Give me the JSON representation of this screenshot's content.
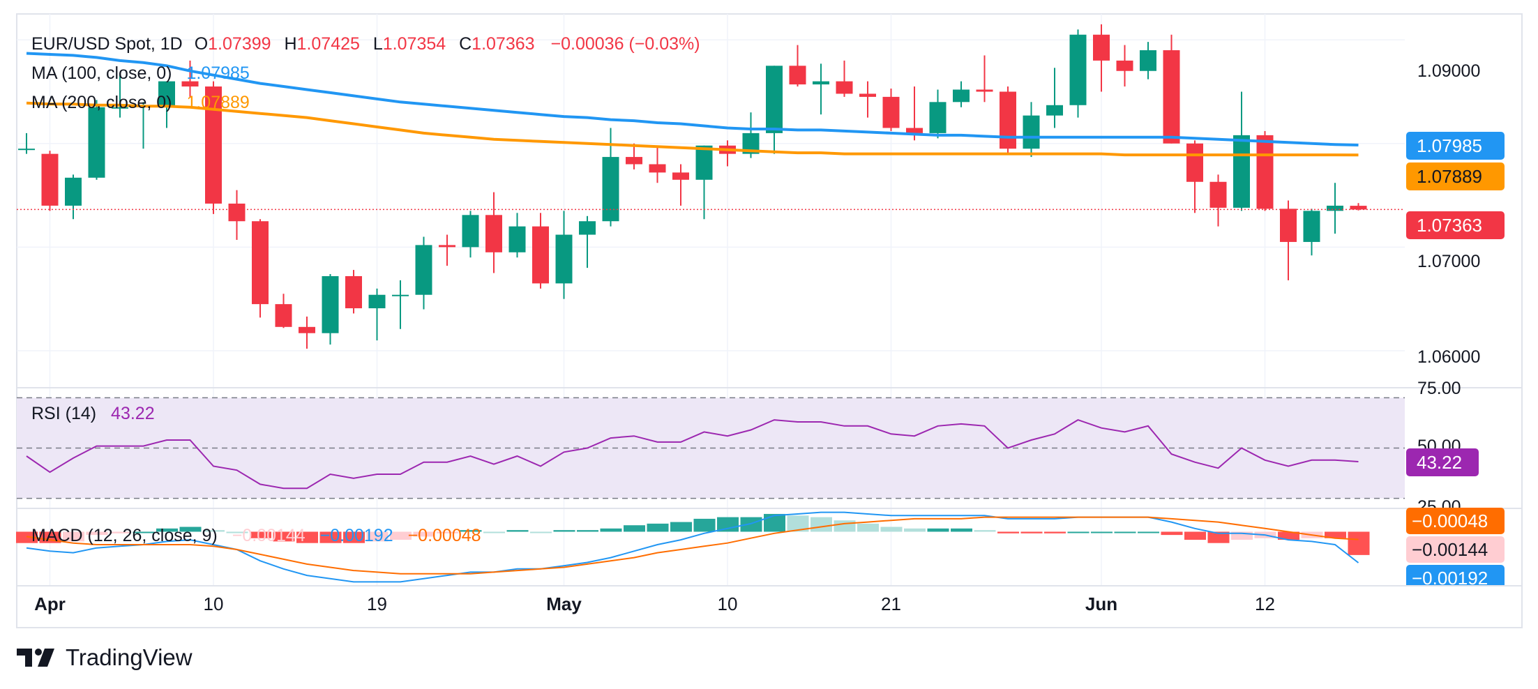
{
  "colors": {
    "up": "#089981",
    "down": "#f23645",
    "ma100": "#2196f3",
    "ma200": "#ff9800",
    "rsi": "#9c27b0",
    "rsi_band": "#ede7f6",
    "macd_line": "#2196f3",
    "signal_line": "#ff6d00",
    "hist_up_strong": "#26a69a",
    "hist_up_weak": "#b2dfdb",
    "hist_down_strong": "#ff5252",
    "hist_down_weak": "#ffcdd2",
    "grid": "#f0f3fa",
    "text": "#131722"
  },
  "legend": {
    "symbol": "EUR/USD Spot, 1D",
    "o_label": "O",
    "o_value": "1.07399",
    "h_label": "H",
    "h_value": "1.07425",
    "l_label": "L",
    "l_value": "1.07354",
    "c_label": "C",
    "c_value": "1.07363",
    "change": "−0.00036 (−0.03%)",
    "ma100_label": "MA (100, close, 0)",
    "ma100_value": "1.07985",
    "ma200_label": "MA (200, close, 0)",
    "ma200_value": "1.07889",
    "rsi_label": "RSI (14)",
    "rsi_value": "43.22",
    "macd_label": "MACD (12, 26, close, 9)",
    "macd_hist_value": "−0.00144",
    "macd_value": "−0.00192",
    "macd_signal_value": "−0.00048"
  },
  "price_axis": {
    "ticks": [
      "1.09000",
      "1.07000",
      "1.06000"
    ],
    "badges": {
      "ma100": "1.07985",
      "ma200": "1.07889",
      "last": "1.07363"
    }
  },
  "rsi_axis": {
    "ticks": [
      "75.00",
      "50.00",
      "25.00"
    ],
    "badge": "43.22"
  },
  "macd_axis": {
    "badges": {
      "signal": "−0.00048",
      "hist": "−0.00144",
      "macd": "−0.00192"
    }
  },
  "time_axis": {
    "labels": [
      {
        "text": "Apr",
        "index": 1,
        "bold": true
      },
      {
        "text": "10",
        "index": 8,
        "bold": false
      },
      {
        "text": "19",
        "index": 15,
        "bold": false
      },
      {
        "text": "May",
        "index": 23,
        "bold": true
      },
      {
        "text": "10",
        "index": 30,
        "bold": false
      },
      {
        "text": "21",
        "index": 37,
        "bold": false
      },
      {
        "text": "Jun",
        "index": 46,
        "bold": true
      },
      {
        "text": "12",
        "index": 53,
        "bold": false
      }
    ]
  },
  "brand": {
    "name": "TradingView"
  },
  "chart_data": {
    "type": "candlestick",
    "title": "EUR/USD Spot, 1D",
    "price_range": [
      1.0565,
      1.0925
    ],
    "candles": [
      {
        "o": 1.0795,
        "h": 1.081,
        "l": 1.079,
        "c": 1.0795
      },
      {
        "o": 1.079,
        "h": 1.0793,
        "l": 1.0735,
        "c": 1.074
      },
      {
        "o": 1.074,
        "h": 1.077,
        "l": 1.0727,
        "c": 1.0767
      },
      {
        "o": 1.0767,
        "h": 1.0842,
        "l": 1.0765,
        "c": 1.0835
      },
      {
        "o": 1.0835,
        "h": 1.0868,
        "l": 1.0825,
        "c": 1.0835
      },
      {
        "o": 1.0835,
        "h": 1.084,
        "l": 1.0795,
        "c": 1.0837
      },
      {
        "o": 1.0835,
        "h": 1.086,
        "l": 1.0815,
        "c": 1.086
      },
      {
        "o": 1.086,
        "h": 1.088,
        "l": 1.0845,
        "c": 1.0855
      },
      {
        "o": 1.0855,
        "h": 1.086,
        "l": 1.0732,
        "c": 1.0742
      },
      {
        "o": 1.0742,
        "h": 1.0755,
        "l": 1.0707,
        "c": 1.0725
      },
      {
        "o": 1.0725,
        "h": 1.0727,
        "l": 1.0632,
        "c": 1.0645
      },
      {
        "o": 1.0645,
        "h": 1.0655,
        "l": 1.0622,
        "c": 1.0623
      },
      {
        "o": 1.0623,
        "h": 1.0633,
        "l": 1.0602,
        "c": 1.0617
      },
      {
        "o": 1.0617,
        "h": 1.0674,
        "l": 1.0606,
        "c": 1.0672
      },
      {
        "o": 1.0672,
        "h": 1.0678,
        "l": 1.0636,
        "c": 1.0641
      },
      {
        "o": 1.0641,
        "h": 1.066,
        "l": 1.061,
        "c": 1.0654
      },
      {
        "o": 1.0654,
        "h": 1.0668,
        "l": 1.0621,
        "c": 1.0654
      },
      {
        "o": 1.0654,
        "h": 1.071,
        "l": 1.064,
        "c": 1.0702
      },
      {
        "o": 1.0702,
        "h": 1.0712,
        "l": 1.0682,
        "c": 1.07
      },
      {
        "o": 1.07,
        "h": 1.0735,
        "l": 1.069,
        "c": 1.0731
      },
      {
        "o": 1.0731,
        "h": 1.0753,
        "l": 1.0675,
        "c": 1.0695
      },
      {
        "o": 1.0695,
        "h": 1.0733,
        "l": 1.069,
        "c": 1.072
      },
      {
        "o": 1.072,
        "h": 1.0733,
        "l": 1.066,
        "c": 1.0665
      },
      {
        "o": 1.0665,
        "h": 1.0735,
        "l": 1.065,
        "c": 1.0712
      },
      {
        "o": 1.0712,
        "h": 1.073,
        "l": 1.068,
        "c": 1.0725
      },
      {
        "o": 1.0725,
        "h": 1.0815,
        "l": 1.072,
        "c": 1.0787
      },
      {
        "o": 1.0787,
        "h": 1.08,
        "l": 1.0775,
        "c": 1.078
      },
      {
        "o": 1.078,
        "h": 1.0797,
        "l": 1.0762,
        "c": 1.0772
      },
      {
        "o": 1.0772,
        "h": 1.078,
        "l": 1.074,
        "c": 1.0765
      },
      {
        "o": 1.0765,
        "h": 1.0798,
        "l": 1.0727,
        "c": 1.0798
      },
      {
        "o": 1.0798,
        "h": 1.0803,
        "l": 1.0778,
        "c": 1.079
      },
      {
        "o": 1.079,
        "h": 1.083,
        "l": 1.0786,
        "c": 1.081
      },
      {
        "o": 1.081,
        "h": 1.0875,
        "l": 1.079,
        "c": 1.0875
      },
      {
        "o": 1.0875,
        "h": 1.0895,
        "l": 1.0855,
        "c": 1.0857
      },
      {
        "o": 1.0857,
        "h": 1.0877,
        "l": 1.0828,
        "c": 1.086
      },
      {
        "o": 1.086,
        "h": 1.088,
        "l": 1.0845,
        "c": 1.0848
      },
      {
        "o": 1.0848,
        "h": 1.086,
        "l": 1.0825,
        "c": 1.0845
      },
      {
        "o": 1.0845,
        "h": 1.0853,
        "l": 1.0812,
        "c": 1.0815
      },
      {
        "o": 1.0815,
        "h": 1.0855,
        "l": 1.0803,
        "c": 1.081
      },
      {
        "o": 1.081,
        "h": 1.0852,
        "l": 1.0805,
        "c": 1.084
      },
      {
        "o": 1.084,
        "h": 1.086,
        "l": 1.0835,
        "c": 1.0852
      },
      {
        "o": 1.0852,
        "h": 1.0885,
        "l": 1.084,
        "c": 1.085
      },
      {
        "o": 1.085,
        "h": 1.0855,
        "l": 1.079,
        "c": 1.0795
      },
      {
        "o": 1.0795,
        "h": 1.084,
        "l": 1.0787,
        "c": 1.0827
      },
      {
        "o": 1.0827,
        "h": 1.0873,
        "l": 1.0815,
        "c": 1.0837
      },
      {
        "o": 1.0837,
        "h": 1.091,
        "l": 1.0825,
        "c": 1.0905
      },
      {
        "o": 1.0905,
        "h": 1.0915,
        "l": 1.085,
        "c": 1.088
      },
      {
        "o": 1.088,
        "h": 1.0895,
        "l": 1.0855,
        "c": 1.087
      },
      {
        "o": 1.087,
        "h": 1.0898,
        "l": 1.0862,
        "c": 1.089
      },
      {
        "o": 1.089,
        "h": 1.0905,
        "l": 1.08,
        "c": 1.08
      },
      {
        "o": 1.08,
        "h": 1.0803,
        "l": 1.0733,
        "c": 1.0763
      },
      {
        "o": 1.0763,
        "h": 1.077,
        "l": 1.072,
        "c": 1.0738
      },
      {
        "o": 1.0738,
        "h": 1.085,
        "l": 1.0735,
        "c": 1.0808
      },
      {
        "o": 1.0808,
        "h": 1.0812,
        "l": 1.0735,
        "c": 1.0737
      },
      {
        "o": 1.0737,
        "h": 1.0745,
        "l": 1.0668,
        "c": 1.0705
      },
      {
        "o": 1.0705,
        "h": 1.0737,
        "l": 1.0692,
        "c": 1.0735
      },
      {
        "o": 1.0735,
        "h": 1.0762,
        "l": 1.0713,
        "c": 1.074
      },
      {
        "o": 1.07399,
        "h": 1.07425,
        "l": 1.07354,
        "c": 1.07363
      }
    ],
    "ma100": [
      1.0887,
      1.0886,
      1.0885,
      1.0883,
      1.088,
      1.0878,
      1.0875,
      1.087,
      1.0866,
      1.0862,
      1.0858,
      1.0855,
      1.0852,
      1.0849,
      1.0846,
      1.0843,
      1.084,
      1.0838,
      1.0836,
      1.0834,
      1.0832,
      1.083,
      1.0828,
      1.0826,
      1.0825,
      1.0823,
      1.0822,
      1.082,
      1.0819,
      1.0817,
      1.0815,
      1.0814,
      1.0814,
      1.0813,
      1.0813,
      1.0812,
      1.0811,
      1.081,
      1.0809,
      1.0808,
      1.0808,
      1.0807,
      1.0806,
      1.0806,
      1.0806,
      1.0806,
      1.0806,
      1.0806,
      1.0806,
      1.0806,
      1.0805,
      1.0804,
      1.0803,
      1.0802,
      1.0801,
      1.08,
      1.0799,
      1.07985
    ],
    "ma200": [
      1.0839,
      1.0838,
      1.0838,
      1.0837,
      1.0837,
      1.0836,
      1.0836,
      1.0835,
      1.0833,
      1.0831,
      1.0829,
      1.0827,
      1.0825,
      1.0822,
      1.0819,
      1.0816,
      1.0813,
      1.081,
      1.0808,
      1.0806,
      1.0804,
      1.0803,
      1.0802,
      1.0801,
      1.08,
      1.0799,
      1.0798,
      1.0797,
      1.0796,
      1.0795,
      1.0794,
      1.0793,
      1.0792,
      1.0791,
      1.0791,
      1.079,
      1.079,
      1.079,
      1.079,
      1.079,
      1.079,
      1.079,
      1.079,
      1.079,
      1.079,
      1.079,
      1.079,
      1.0789,
      1.0789,
      1.0789,
      1.0789,
      1.0789,
      1.0789,
      1.0789,
      1.0789,
      1.0789,
      1.0789,
      1.07889
    ],
    "rsi": {
      "range": [
        20,
        80
      ],
      "levels": [
        75,
        50,
        25
      ],
      "values": [
        46,
        38,
        45,
        51,
        51,
        51,
        54,
        54,
        41,
        39,
        32,
        30,
        30,
        37,
        35,
        37,
        37,
        43,
        43,
        46,
        42,
        46,
        41,
        48,
        50,
        55,
        56,
        53,
        53,
        58,
        56,
        59,
        64,
        63,
        63,
        61,
        61,
        57,
        56,
        61,
        62,
        61,
        50,
        54,
        57,
        64,
        60,
        58,
        61,
        47,
        43,
        40,
        50,
        44,
        41,
        44,
        44,
        43.22
      ]
    },
    "macd": {
      "range": [
        -0.0033,
        0.0014
      ],
      "macd": [
        -0.001,
        -0.0012,
        -0.0013,
        -0.001,
        -0.0009,
        -0.0008,
        -0.0006,
        -0.0005,
        -0.0008,
        -0.0011,
        -0.0018,
        -0.0023,
        -0.0027,
        -0.0029,
        -0.0031,
        -0.0031,
        -0.0031,
        -0.0029,
        -0.0027,
        -0.0025,
        -0.0025,
        -0.0023,
        -0.0023,
        -0.0021,
        -0.0019,
        -0.0016,
        -0.0012,
        -0.0008,
        -0.0005,
        -0.0001,
        0.0002,
        0.0005,
        0.001,
        0.0011,
        0.0012,
        0.0012,
        0.0011,
        0.001,
        0.001,
        0.001,
        0.001,
        0.001,
        0.0008,
        0.0008,
        0.0008,
        0.0009,
        0.0009,
        0.0009,
        0.0009,
        0.0006,
        0.0002,
        -0.0001,
        -0.0001,
        -0.0002,
        -0.0005,
        -0.0006,
        -0.0008,
        -0.00192
      ],
      "signal": [
        -0.0003,
        -0.0005,
        -0.0007,
        -0.0008,
        -0.0008,
        -0.0008,
        -0.0008,
        -0.0008,
        -0.0009,
        -0.0011,
        -0.0014,
        -0.0017,
        -0.002,
        -0.0022,
        -0.0024,
        -0.0025,
        -0.0026,
        -0.0026,
        -0.0026,
        -0.0026,
        -0.0025,
        -0.0024,
        -0.0023,
        -0.0022,
        -0.002,
        -0.0018,
        -0.0016,
        -0.0013,
        -0.0011,
        -0.0009,
        -0.0007,
        -0.0004,
        -0.0001,
        0.0001,
        0.0003,
        0.0005,
        0.0006,
        0.0007,
        0.0008,
        0.0008,
        0.0008,
        0.0009,
        0.0009,
        0.0009,
        0.0009,
        0.0009,
        0.0009,
        0.0009,
        0.0009,
        0.0008,
        0.0007,
        0.0006,
        0.0004,
        0.0002,
        0.0,
        -0.0002,
        -0.0004,
        -0.00048
      ],
      "hist": [
        -0.0007,
        -0.0007,
        -0.0006,
        -0.0002,
        -0.0001,
        0.0,
        0.0002,
        0.0003,
        0.0001,
        0.0,
        -0.0004,
        -0.0006,
        -0.0007,
        -0.0007,
        -0.0007,
        -0.0006,
        -0.0005,
        -0.0003,
        -0.0001,
        0.0001,
        0.0,
        0.0001,
        0.0,
        0.0001,
        0.0001,
        0.0002,
        0.0004,
        0.0005,
        0.0006,
        0.0008,
        0.0009,
        0.0009,
        0.0011,
        0.001,
        0.0009,
        0.0007,
        0.0005,
        0.0003,
        0.0002,
        0.0002,
        0.0002,
        0.0001,
        -0.0001,
        -0.0001,
        -0.0001,
        0.0,
        0.0,
        0.0,
        0.0,
        -0.0002,
        -0.0005,
        -0.0007,
        -0.0005,
        -0.0004,
        -0.0005,
        -0.0004,
        -0.0004,
        -0.00144
      ]
    }
  }
}
